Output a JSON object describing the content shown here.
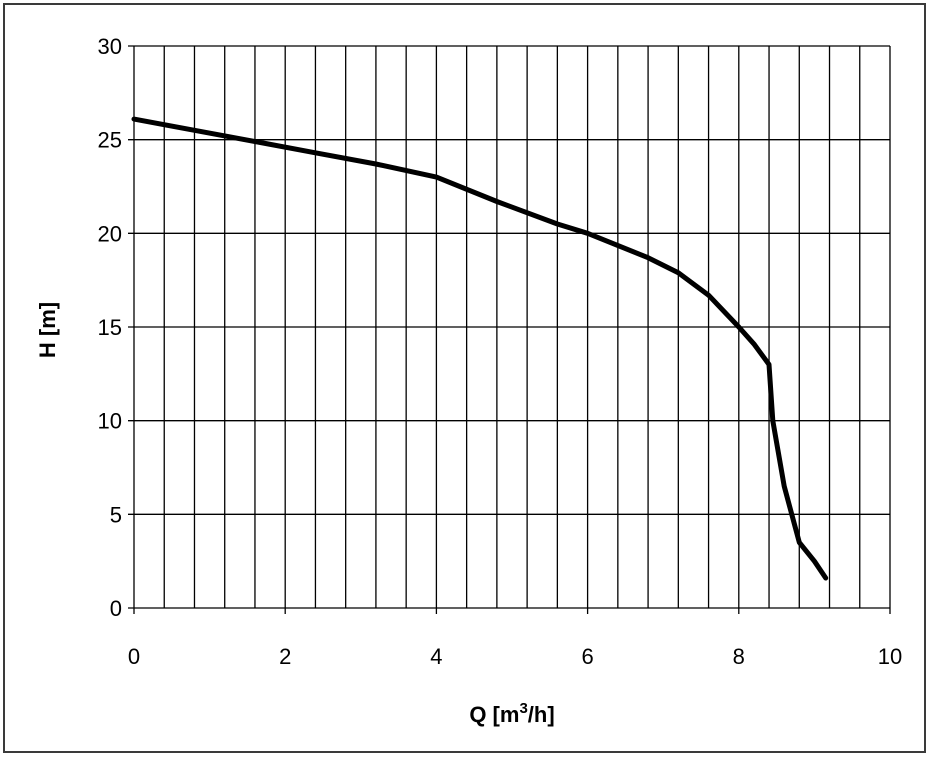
{
  "chart_data": {
    "type": "line",
    "xlabel": "Q [m",
    "xlabel_sup": "3",
    "xlabel_tail": "/h]",
    "ylabel": "H [m]",
    "xlim": [
      0,
      10
    ],
    "ylim": [
      0,
      30
    ],
    "x_ticks": [
      0,
      2,
      4,
      6,
      8,
      10
    ],
    "y_ticks": [
      0,
      5,
      10,
      15,
      20,
      25,
      30
    ],
    "x_gridlines": [
      0,
      0.4,
      0.8,
      1.2,
      1.6,
      2.0,
      2.4,
      2.8,
      3.2,
      3.6,
      4.0,
      4.4,
      4.8,
      5.2,
      5.6,
      6.0,
      6.4,
      6.8,
      7.2,
      7.6,
      8.0,
      8.4,
      8.8,
      9.2,
      9.6,
      10.0
    ],
    "y_gridlines": [
      0,
      5,
      10,
      15,
      20,
      25,
      30
    ],
    "grid": true,
    "series": [
      {
        "color": "#000000",
        "x": [
          0,
          0.8,
          1.6,
          2.4,
          3.2,
          4.0,
          4.8,
          5.6,
          6.0,
          6.8,
          7.2,
          7.6,
          8.0,
          8.2,
          8.4,
          8.45,
          8.6,
          8.8,
          9.0,
          9.15
        ],
        "y": [
          26.1,
          25.5,
          24.9,
          24.3,
          23.7,
          23.0,
          21.7,
          20.5,
          20.0,
          18.7,
          17.9,
          16.7,
          15.0,
          14.1,
          13.0,
          10.0,
          6.5,
          3.5,
          2.5,
          1.6
        ]
      }
    ]
  }
}
